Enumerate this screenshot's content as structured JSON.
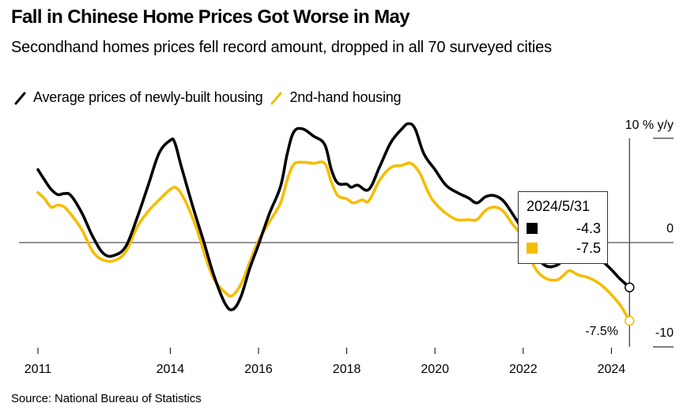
{
  "header": {
    "title": "Fall in Chinese Home Prices Got Worse in May",
    "subtitle": "Secondhand homes prices fell record amount, dropped in all 70 surveyed cities"
  },
  "legend": [
    {
      "label": "Average prices of newly-built housing",
      "color": "#000000",
      "icon": "diagonal-line-icon"
    },
    {
      "label": "2nd-hand housing",
      "color": "#f5bd00",
      "icon": "diagonal-line-icon"
    }
  ],
  "source": "Source: National Bureau of Statistics",
  "tooltip": {
    "date": "2024/5/31",
    "rows": [
      {
        "series": "Average prices of newly-built housing",
        "color": "#000000",
        "value": "-4.3"
      },
      {
        "series": "2nd-hand housing",
        "color": "#f5bd00",
        "value": "-7.5"
      }
    ]
  },
  "annotations": {
    "last_value_label": "-7.5%"
  },
  "chart_data": {
    "type": "line",
    "title": "Fall in Chinese Home Prices Got Worse in May",
    "subtitle": "Secondhand homes prices fell record amount, dropped in all 70 surveyed cities",
    "xlabel": "",
    "ylabel": "% y/y",
    "xlim": [
      2011,
      2025.1
    ],
    "ylim": [
      -10,
      10
    ],
    "x_ticks": [
      2011,
      2014,
      2016,
      2018,
      2020,
      2022,
      2024
    ],
    "x_tick_labels": [
      "2011",
      "2014",
      "2016",
      "2018",
      "2020",
      "2022",
      "2024"
    ],
    "y_ticks": [
      10,
      0,
      -10
    ],
    "y_tick_labels": [
      "10 % y/y",
      "0",
      "-10"
    ],
    "y_axis_side": "right",
    "grid": false,
    "zero_line": true,
    "legend_position": "top-left",
    "highlight_x": 2024.41,
    "series": [
      {
        "name": "Average prices of newly-built housing",
        "color": "#000000",
        "points": [
          [
            2011.0,
            7.0
          ],
          [
            2011.15,
            6.0
          ],
          [
            2011.3,
            5.1
          ],
          [
            2011.45,
            4.6
          ],
          [
            2011.6,
            4.7
          ],
          [
            2011.75,
            4.5
          ],
          [
            2012.0,
            2.8
          ],
          [
            2012.25,
            0.5
          ],
          [
            2012.5,
            -1.1
          ],
          [
            2012.75,
            -1.2
          ],
          [
            2013.0,
            -0.3
          ],
          [
            2013.25,
            2.4
          ],
          [
            2013.5,
            5.5
          ],
          [
            2013.75,
            8.6
          ],
          [
            2014.0,
            9.8
          ],
          [
            2014.1,
            9.6
          ],
          [
            2014.25,
            7.3
          ],
          [
            2014.5,
            3.6
          ],
          [
            2014.75,
            0.2
          ],
          [
            2015.0,
            -3.3
          ],
          [
            2015.25,
            -5.9
          ],
          [
            2015.42,
            -6.4
          ],
          [
            2015.6,
            -5.2
          ],
          [
            2015.8,
            -2.5
          ],
          [
            2016.0,
            -0.2
          ],
          [
            2016.25,
            2.8
          ],
          [
            2016.5,
            5.4
          ],
          [
            2016.65,
            8.5
          ],
          [
            2016.8,
            10.6
          ],
          [
            2017.0,
            10.9
          ],
          [
            2017.25,
            10.2
          ],
          [
            2017.5,
            9.4
          ],
          [
            2017.65,
            7.0
          ],
          [
            2017.8,
            5.7
          ],
          [
            2018.0,
            5.6
          ],
          [
            2018.1,
            5.3
          ],
          [
            2018.25,
            5.5
          ],
          [
            2018.5,
            5.1
          ],
          [
            2018.75,
            7.3
          ],
          [
            2019.0,
            9.6
          ],
          [
            2019.25,
            10.9
          ],
          [
            2019.4,
            11.4
          ],
          [
            2019.55,
            10.9
          ],
          [
            2019.75,
            8.5
          ],
          [
            2020.0,
            7.0
          ],
          [
            2020.25,
            5.5
          ],
          [
            2020.5,
            4.8
          ],
          [
            2020.75,
            4.3
          ],
          [
            2020.95,
            3.8
          ],
          [
            2021.15,
            4.4
          ],
          [
            2021.35,
            4.5
          ],
          [
            2021.55,
            4.0
          ],
          [
            2021.75,
            2.8
          ],
          [
            2022.0,
            1.1
          ],
          [
            2022.25,
            -1.0
          ],
          [
            2022.5,
            -2.2
          ],
          [
            2022.75,
            -2.2
          ],
          [
            2022.9,
            -1.6
          ],
          [
            2023.05,
            -0.6
          ],
          [
            2023.25,
            -0.3
          ],
          [
            2023.5,
            -0.8
          ],
          [
            2023.75,
            -1.6
          ],
          [
            2024.0,
            -2.6
          ],
          [
            2024.2,
            -3.5
          ],
          [
            2024.41,
            -4.3
          ]
        ]
      },
      {
        "name": "2nd-hand housing",
        "color": "#f5bd00",
        "points": [
          [
            2011.0,
            4.8
          ],
          [
            2011.15,
            4.2
          ],
          [
            2011.3,
            3.4
          ],
          [
            2011.45,
            3.6
          ],
          [
            2011.6,
            3.4
          ],
          [
            2011.75,
            2.7
          ],
          [
            2012.0,
            1.2
          ],
          [
            2012.25,
            -0.9
          ],
          [
            2012.5,
            -1.7
          ],
          [
            2012.75,
            -1.7
          ],
          [
            2013.0,
            -0.8
          ],
          [
            2013.25,
            1.5
          ],
          [
            2013.5,
            3.0
          ],
          [
            2013.75,
            4.1
          ],
          [
            2014.0,
            5.1
          ],
          [
            2014.15,
            5.2
          ],
          [
            2014.35,
            3.9
          ],
          [
            2014.6,
            1.3
          ],
          [
            2014.8,
            -1.4
          ],
          [
            2015.0,
            -3.6
          ],
          [
            2015.25,
            -4.8
          ],
          [
            2015.4,
            -5.1
          ],
          [
            2015.6,
            -4.0
          ],
          [
            2015.8,
            -1.9
          ],
          [
            2016.0,
            0.2
          ],
          [
            2016.25,
            2.0
          ],
          [
            2016.5,
            3.8
          ],
          [
            2016.65,
            6.0
          ],
          [
            2016.8,
            7.5
          ],
          [
            2017.0,
            7.7
          ],
          [
            2017.25,
            7.6
          ],
          [
            2017.5,
            7.6
          ],
          [
            2017.65,
            5.8
          ],
          [
            2017.8,
            4.5
          ],
          [
            2018.0,
            4.2
          ],
          [
            2018.15,
            3.8
          ],
          [
            2018.35,
            4.1
          ],
          [
            2018.5,
            4.0
          ],
          [
            2018.75,
            6.0
          ],
          [
            2019.0,
            7.2
          ],
          [
            2019.25,
            7.4
          ],
          [
            2019.45,
            7.6
          ],
          [
            2019.65,
            6.7
          ],
          [
            2019.85,
            4.8
          ],
          [
            2020.0,
            3.8
          ],
          [
            2020.25,
            2.8
          ],
          [
            2020.5,
            2.2
          ],
          [
            2020.75,
            2.2
          ],
          [
            2020.95,
            2.2
          ],
          [
            2021.15,
            3.1
          ],
          [
            2021.35,
            3.4
          ],
          [
            2021.55,
            3.0
          ],
          [
            2021.75,
            1.8
          ],
          [
            2022.0,
            0.4
          ],
          [
            2022.25,
            -2.3
          ],
          [
            2022.5,
            -3.4
          ],
          [
            2022.75,
            -3.6
          ],
          [
            2022.9,
            -3.2
          ],
          [
            2023.05,
            -2.7
          ],
          [
            2023.25,
            -3.1
          ],
          [
            2023.5,
            -3.4
          ],
          [
            2023.75,
            -4.0
          ],
          [
            2024.0,
            -5.0
          ],
          [
            2024.2,
            -6.0
          ],
          [
            2024.41,
            -7.5
          ]
        ]
      }
    ]
  }
}
